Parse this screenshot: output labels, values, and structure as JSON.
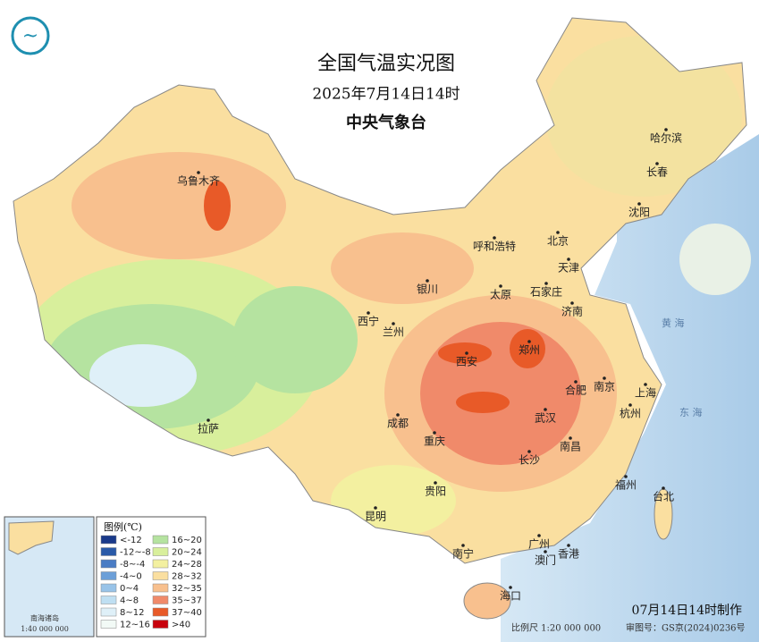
{
  "header": {
    "title": "全国气温实况图",
    "date": "2025年7月14日14时",
    "agency": "中央气象台"
  },
  "cities": [
    {
      "label": "乌鲁木齐"
    },
    {
      "label": "哈尔滨"
    },
    {
      "label": "长春"
    },
    {
      "label": "沈阳"
    },
    {
      "label": "呼和浩特"
    },
    {
      "label": "北京"
    },
    {
      "label": "天津"
    },
    {
      "label": "石家庄"
    },
    {
      "label": "太原"
    },
    {
      "label": "银川"
    },
    {
      "label": "西宁"
    },
    {
      "label": "兰州"
    },
    {
      "label": "济南"
    },
    {
      "label": "郑州"
    },
    {
      "label": "西安"
    },
    {
      "label": "合肥"
    },
    {
      "label": "南京"
    },
    {
      "label": "上海"
    },
    {
      "label": "杭州"
    },
    {
      "label": "武汉"
    },
    {
      "label": "成都"
    },
    {
      "label": "重庆"
    },
    {
      "label": "拉萨"
    },
    {
      "label": "南昌"
    },
    {
      "label": "长沙"
    },
    {
      "label": "福州"
    },
    {
      "label": "台北"
    },
    {
      "label": "贵阳"
    },
    {
      "label": "昆明"
    },
    {
      "label": "南宁"
    },
    {
      "label": "广州"
    },
    {
      "label": "香港"
    },
    {
      "label": "澳门"
    },
    {
      "label": "海口"
    }
  ],
  "seas": [
    {
      "label": "黄 海"
    },
    {
      "label": "东 海"
    }
  ],
  "legend": {
    "title": "图例(℃)",
    "items": [
      {
        "label": "<-12",
        "color": "#1a3a8a"
      },
      {
        "label": "-12~-8",
        "color": "#2a5aa8"
      },
      {
        "label": "-8~-4",
        "color": "#4a7cc4"
      },
      {
        "label": "-4~0",
        "color": "#6c9fd8"
      },
      {
        "label": "0~4",
        "color": "#98c3e8"
      },
      {
        "label": "4~8",
        "color": "#bfdff2"
      },
      {
        "label": "8~12",
        "color": "#dff0f8"
      },
      {
        "label": "12~16",
        "color": "#f2faf6"
      },
      {
        "label": "16~20",
        "color": "#b5e3a0"
      },
      {
        "label": "20~24",
        "color": "#d8ef9c"
      },
      {
        "label": "24~28",
        "color": "#f3f0a0"
      },
      {
        "label": "28~32",
        "color": "#fadfa0"
      },
      {
        "label": "32~35",
        "color": "#f8c08e"
      },
      {
        "label": "35~37",
        "color": "#f08a6a"
      },
      {
        "label": "37~40",
        "color": "#e85a28"
      },
      {
        "label": ">40",
        "color": "#c8000c"
      }
    ]
  },
  "inset": {
    "label": "南海诸岛",
    "scale": "1:40 000 000"
  },
  "footer": {
    "made": "07月14日14时制作",
    "scale": "比例尺  1:20 000 000",
    "approval": "审图号：GS京(2024)0236号"
  }
}
